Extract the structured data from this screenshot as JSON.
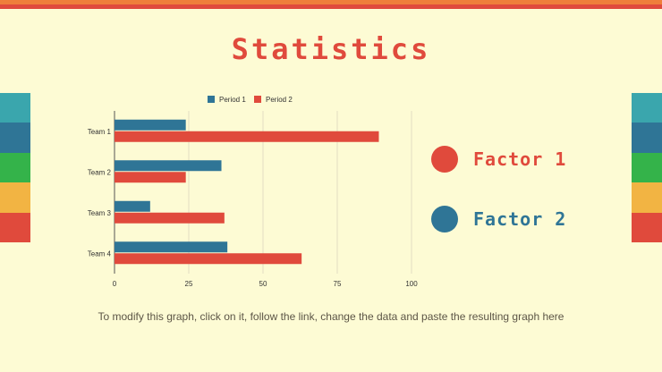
{
  "title": "Statistics",
  "caption": "To modify this graph, click on it, follow the link, change the data and paste the resulting graph here",
  "factors": [
    {
      "label": "Factor 1",
      "color": "#e04a3c"
    },
    {
      "label": "Factor 2",
      "color": "#2f7596"
    }
  ],
  "side_bar_colors": [
    "#3aa6ad",
    "#2f7596",
    "#34b34a",
    "#f2b443",
    "#e04a3c"
  ],
  "chart_data": {
    "type": "bar",
    "orientation": "horizontal",
    "categories": [
      "Team 1",
      "Team 2",
      "Team 3",
      "Team 4"
    ],
    "series": [
      {
        "name": "Period 1",
        "color": "#2f7596",
        "values": [
          24,
          36,
          12,
          38
        ]
      },
      {
        "name": "Period 2",
        "color": "#e04a3c",
        "values": [
          89,
          24,
          37,
          63
        ]
      }
    ],
    "xlim": [
      0,
      100
    ],
    "xticks": [
      "0",
      "25",
      "50",
      "75",
      "100"
    ],
    "grid": true,
    "legend": "top"
  }
}
